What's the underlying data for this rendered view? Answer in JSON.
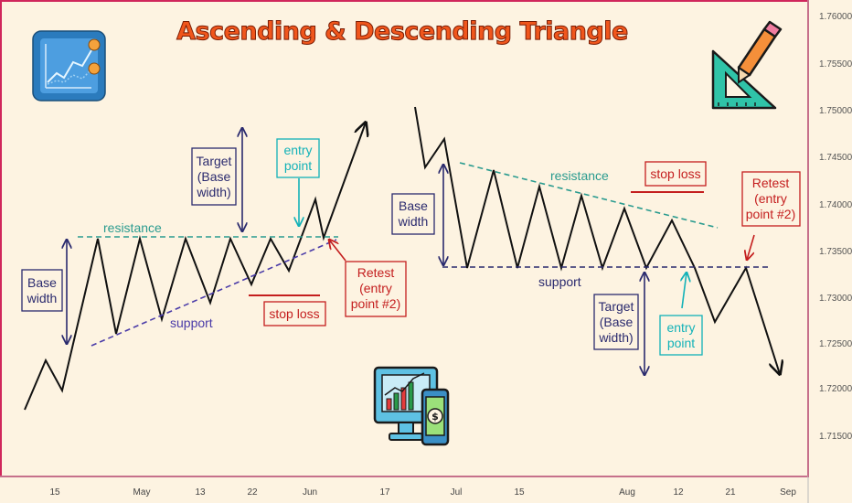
{
  "title": "Ascending & Descending Triangle",
  "price_axis": [
    "1.76000",
    "1.75500",
    "1.75000",
    "1.74500",
    "1.74000",
    "1.73500",
    "1.73000",
    "1.72500",
    "1.72000",
    "1.71500"
  ],
  "date_axis": [
    "15",
    "May",
    "13",
    "22",
    "Jun",
    "17",
    "Jul",
    "15",
    "Aug",
    "12",
    "21",
    "Sep"
  ],
  "ascending": {
    "resistance": "resistance",
    "support": "support",
    "base_width": [
      "Base",
      "width"
    ],
    "target": [
      "Target",
      "(Base",
      "width)"
    ],
    "entry": [
      "entry",
      "point"
    ],
    "retest": [
      "Retest",
      "(entry",
      "point #2)"
    ],
    "stop_loss": "stop loss"
  },
  "descending": {
    "resistance": "resistance",
    "support": "support",
    "base_width": [
      "Base",
      "width"
    ],
    "target": [
      "Target",
      "(Base",
      "width)"
    ],
    "entry": [
      "entry",
      "point"
    ],
    "retest": [
      "Retest",
      "(entry",
      "point #2)"
    ],
    "stop_loss": "stop loss"
  },
  "colors": {
    "frame": "#d0265b",
    "background": "#fdf3e1",
    "title": "#f0561c",
    "navy": "#2a2a6e",
    "teal": "#2a9b8f",
    "cyan": "#13b2b8",
    "red": "#c41e1e",
    "purple": "#4a3ba8"
  },
  "icons": [
    "chart-app-icon",
    "ruler-pencil-icon",
    "trading-monitor-icon"
  ]
}
